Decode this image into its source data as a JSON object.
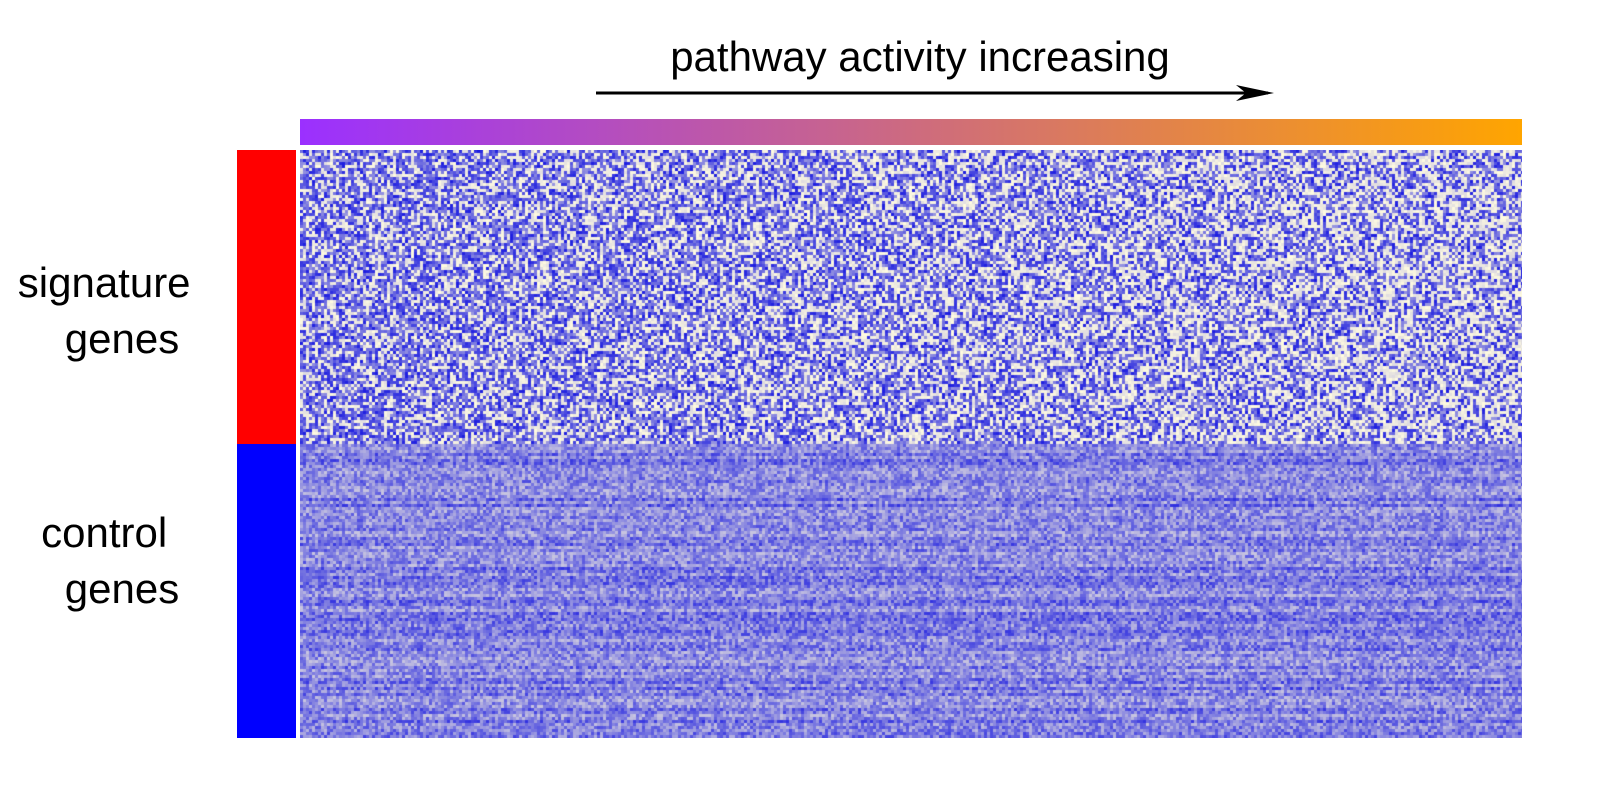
{
  "chart_data": {
    "type": "heatmap",
    "title": "pathway activity increasing",
    "xlabel": "",
    "ylabel": "",
    "column_annotation": {
      "label": "pathway activity increasing",
      "direction": "increasing to the right",
      "gradient_colors": [
        "#9b30ff",
        "#ffa500"
      ]
    },
    "row_groups": [
      {
        "name": "signature genes",
        "label_lines": [
          "signature",
          "genes"
        ],
        "color": "#ff0000",
        "row_fraction": 0.5,
        "pattern": "sparse blue with pale yellow gaps, pale share rising toward the right"
      },
      {
        "name": "control genes",
        "label_lines": [
          "control",
          "genes"
        ],
        "color": "#0000ff",
        "row_fraction": 0.5,
        "pattern": "dense uniform blue"
      }
    ],
    "color_scale": {
      "low": "#fffbe0",
      "high": "#1e1ee0"
    },
    "grid": false,
    "legend": "none"
  },
  "colors": {
    "signature_bar": "#ff0000",
    "control_bar": "#0000ff",
    "arrow": "#000000"
  },
  "icons": {
    "arrow": "right-arrow-icon"
  }
}
